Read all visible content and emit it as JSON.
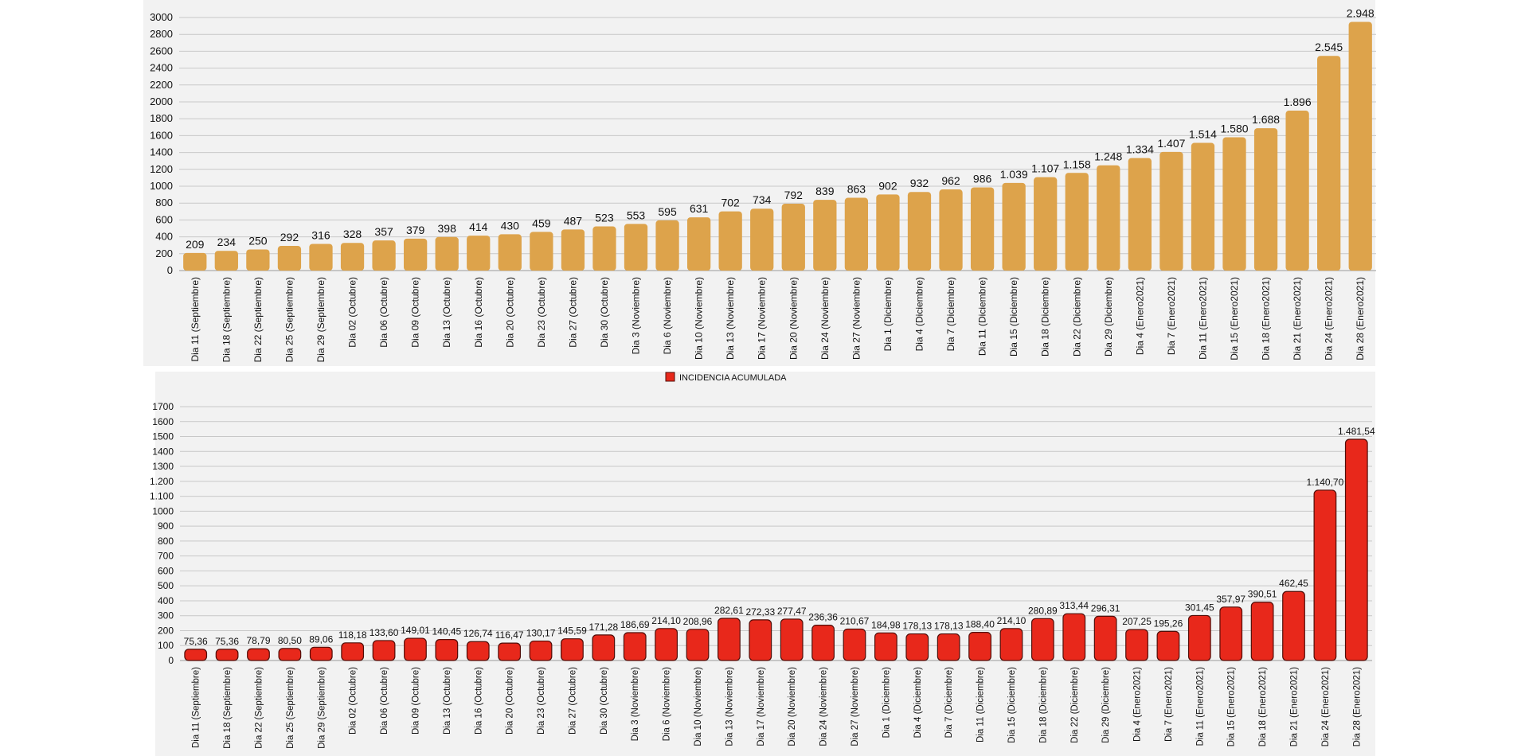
{
  "chart_data": [
    {
      "type": "bar",
      "title": "",
      "xlabel": "",
      "ylabel": "",
      "ylim": [
        0,
        3000
      ],
      "yticks": [
        0,
        200,
        400,
        600,
        800,
        1000,
        1200,
        1400,
        1600,
        1800,
        2000,
        2200,
        2400,
        2600,
        2800,
        3000
      ],
      "grid": true,
      "legend": null,
      "bar_color": "#dda34b",
      "categories": [
        "Dia 11 (Septiembre)",
        "Dia 18 (Septiembre)",
        "Dia 22 (Septiembre)",
        "Dia 25 (Septiembre)",
        "Dia 29 (Septiembre)",
        "Dia 02 (Octubre)",
        "Dia 06 (Octubre)",
        "Dia 09 (Octubre)",
        "Dia 13 (Octubre)",
        "Dia 16 (Octubre)",
        "Dia 20 (Octubre)",
        "Dia 23 (Octubre)",
        "Dia 27 (Octubre)",
        "Dia 30 (Octubre)",
        "Dia 3 (Noviembre)",
        "Dia 6 (Noviembre)",
        "Dia 10 (Noviembre)",
        "Dia 13 (Noviembre)",
        "Dia 17 (Noviembre)",
        "Dia 20 (Noviembre)",
        "Dia 24 (Noviembre)",
        "Dia 27 (Noviembre)",
        "Dia 1 (Diciembre)",
        "Dia 4 (Diciembre)",
        "Dia 7 (Diciembre)",
        "Dia 11 (Diciembre)",
        "Dia 15 (Diciembre)",
        "Dia 18 (Diciembre)",
        "Dia 22 (Diciembre)",
        "Dia 29 (Diciembre)",
        "Dia 4 (Enero2021)",
        "Dia 7 (Enero2021)",
        "Dia 11 (Enero2021)",
        "Dia 15 (Enero2021)",
        "Dia 18 (Enero2021)",
        "Dia 21 (Enero2021)",
        "Dia 24 (Enero2021)",
        "Dia 28 (Enero2021)"
      ],
      "values": [
        209,
        234,
        250,
        292,
        316,
        328,
        357,
        379,
        398,
        414,
        430,
        459,
        487,
        523,
        553,
        595,
        631,
        702,
        734,
        792,
        839,
        863,
        902,
        932,
        962,
        986,
        1039,
        1107,
        1158,
        1248,
        1334,
        1407,
        1514,
        1580,
        1688,
        1896,
        2545,
        2948
      ],
      "data_labels": [
        "209",
        "234",
        "250",
        "292",
        "316",
        "328",
        "357",
        "379",
        "398",
        "414",
        "430",
        "459",
        "487",
        "523",
        "553",
        "595",
        "631",
        "702",
        "734",
        "792",
        "839",
        "863",
        "902",
        "932",
        "962",
        "986",
        "1.039",
        "1.107",
        "1.158",
        "1.248",
        "1.334",
        "1.407",
        "1.514",
        "1.580",
        "1.688",
        "1.896",
        "2.545",
        "2.948"
      ]
    },
    {
      "type": "bar",
      "title": "",
      "xlabel": "",
      "ylabel": "",
      "ylim": [
        0,
        1700
      ],
      "yticks": [
        0,
        100,
        200,
        300,
        400,
        500,
        600,
        700,
        800,
        900,
        1000,
        1100,
        1200,
        1300,
        1400,
        1500,
        1600,
        1700
      ],
      "grid": true,
      "legend": "top",
      "bar_color": "#e8281b",
      "series_name": "INCIDENCIA ACUMULADA",
      "categories": [
        "Dia 11 (Septiembre)",
        "Dia 18 (Septiembre)",
        "Dia 22 (Septiembre)",
        "Dia 25 (Septiembre)",
        "Dia 29 (Septiembre)",
        "Dia 02 (Octubre)",
        "Dia 06 (Octubre)",
        "Dia 09 (Octubre)",
        "Dia 13 (Octubre)",
        "Dia 16 (Octubre)",
        "Dia 20 (Octubre)",
        "Dia 23 (Octubre)",
        "Dia 27 (Octubre)",
        "Dia 30 (Octubre)",
        "Dia 3 (Noviembre)",
        "Dia 6 (Noviembre)",
        "Dia 10 (Noviembre)",
        "Dia 13 (Noviembre)",
        "Dia 17 (Noviembre)",
        "Dia 20 (Noviembre)",
        "Dia 24 (Noviembre)",
        "Dia 27 (Noviembre)",
        "Dia 1 (Diciembre)",
        "Dia 4 (Diciembre)",
        "Dia 7 (Diciembre)",
        "Dia 11 (Diciembre)",
        "Dia 15 (Diciembre)",
        "Dia 18 (Diciembre)",
        "Dia 22 (Diciembre)",
        "Dia 29 (Diciembre)",
        "Dia 4 (Enero2021)",
        "Dia 7 (Enero2021)",
        "Dia 11 (Enero2021)",
        "Dia 15 (Enero2021)",
        "Dia 18 (Enero2021)",
        "Dia 21 (Enero2021)",
        "Dia 24 (Enero2021)",
        "Dia 28 (Enero2021)"
      ],
      "values": [
        75.36,
        75.36,
        78.79,
        80.5,
        89.06,
        118.18,
        133.6,
        149.01,
        140.45,
        126.74,
        116.47,
        130.17,
        145.59,
        171.28,
        186.69,
        214.1,
        208.96,
        282.61,
        272.33,
        277.47,
        236.36,
        210.67,
        184.98,
        178.13,
        178.13,
        188.4,
        214.1,
        280.89,
        313.44,
        296.31,
        207.25,
        195.26,
        301.45,
        357.97,
        390.51,
        462.45,
        1140.7,
        1481.54
      ],
      "data_labels": [
        "75,36",
        "75,36",
        "78,79",
        "80,50",
        "89,06",
        "118,18",
        "133,60",
        "149,01",
        "140,45",
        "126,74",
        "116,47",
        "130,17",
        "145,59",
        "171,28",
        "186,69",
        "214,10",
        "208,96",
        "282,61",
        "272,33",
        "277,47",
        "236,36",
        "210,67",
        "184,98",
        "178,13",
        "178,13",
        "188,40",
        "214,10",
        "280,89",
        "313,44",
        "296,31",
        "207,25",
        "195,26",
        "301,45",
        "357,97",
        "390,51",
        "462,45",
        "1.140,70",
        "1.481,54"
      ],
      "ytick_labels": [
        "0",
        "100",
        "200",
        "300",
        "400",
        "500",
        "600",
        "700",
        "800",
        "900",
        "1000",
        "1.100",
        "1.200",
        "1300",
        "1400",
        "1500",
        "1600",
        "1700"
      ]
    }
  ]
}
